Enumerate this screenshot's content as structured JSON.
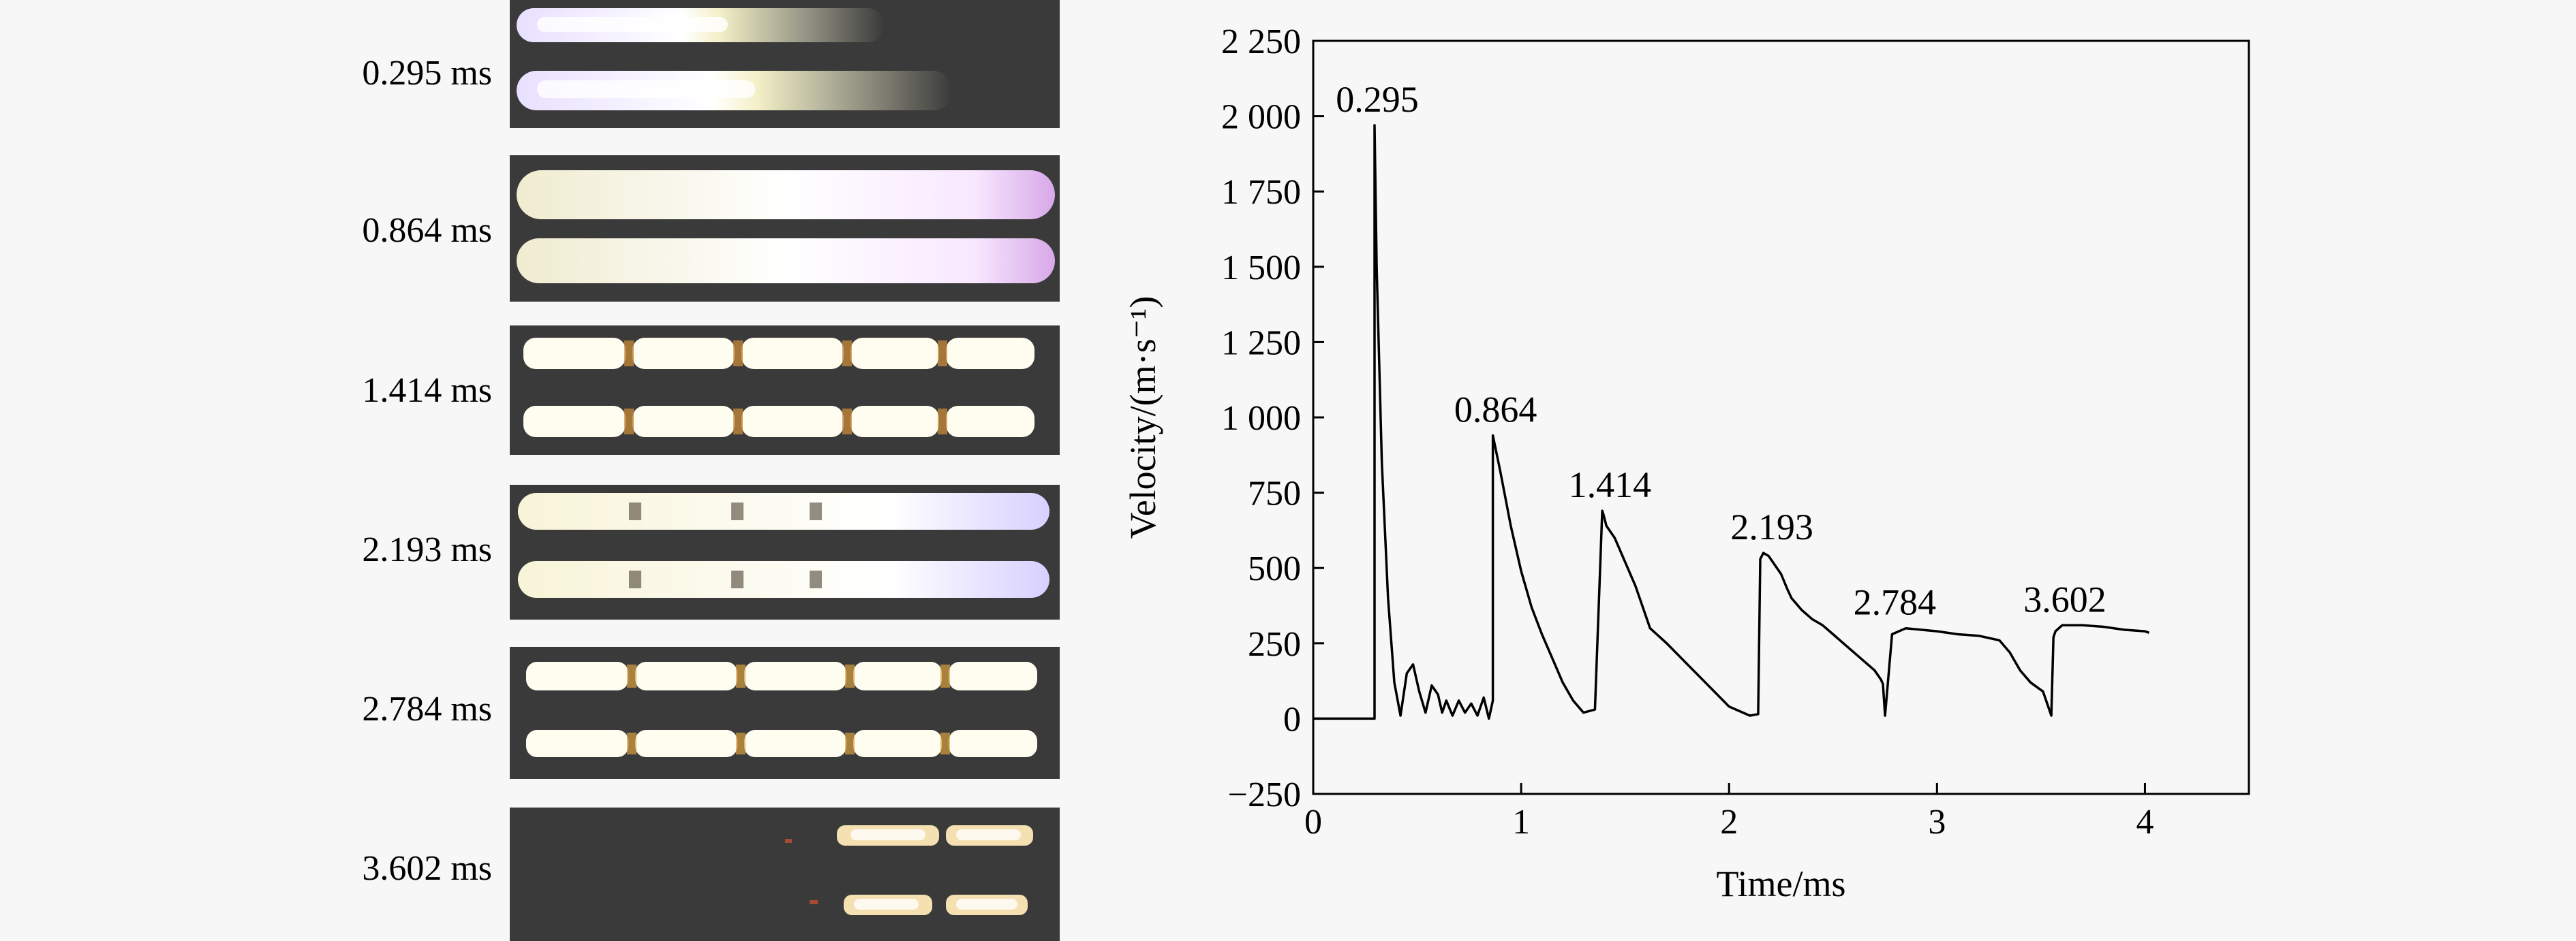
{
  "frames": [
    {
      "label": "0.295 ms"
    },
    {
      "label": "0.864 ms"
    },
    {
      "label": "1.414 ms"
    },
    {
      "label": "2.193 ms"
    },
    {
      "label": "2.784 ms"
    },
    {
      "label": "3.602 ms"
    }
  ],
  "chart_data": {
    "type": "line",
    "xlabel": "Time/ms",
    "ylabel": "Velocity/(m·s⁻¹)",
    "xlim": [
      0,
      4.5
    ],
    "ylim": [
      -250,
      2250
    ],
    "x_ticks": [
      0,
      1,
      2,
      3,
      4
    ],
    "x_tick_labels": [
      "0",
      "1",
      "2",
      "3",
      "4"
    ],
    "y_ticks": [
      -250,
      0,
      250,
      500,
      750,
      1000,
      1250,
      1500,
      1750,
      2000,
      2250
    ],
    "y_tick_labels": [
      "−250",
      "0",
      "250",
      "500",
      "750",
      "1 000",
      "1 250",
      "1 500",
      "1 750",
      "2 000",
      "2 250"
    ],
    "grid": false,
    "series": [
      {
        "x": [
          0,
          0.295,
          0.295,
          0.305,
          0.33,
          0.36,
          0.39,
          0.42,
          0.45,
          0.48,
          0.51,
          0.54,
          0.57,
          0.6,
          0.62,
          0.64,
          0.67,
          0.7,
          0.73,
          0.76,
          0.79,
          0.82,
          0.845,
          0.864,
          0.864,
          0.9,
          0.95,
          1.0,
          1.05,
          1.1,
          1.15,
          1.2,
          1.25,
          1.3,
          1.355,
          1.39,
          1.395,
          1.41,
          1.45,
          1.5,
          1.55,
          1.58,
          1.6,
          1.62,
          1.7,
          1.8,
          1.9,
          2.0,
          2.1,
          2.14,
          2.15,
          2.165,
          2.19,
          2.25,
          2.28,
          2.3,
          2.35,
          2.4,
          2.45,
          2.5,
          2.55,
          2.6,
          2.65,
          2.7,
          2.73,
          2.74,
          2.75,
          2.784,
          2.85,
          3.0,
          3.1,
          3.2,
          3.3,
          3.35,
          3.4,
          3.45,
          3.51,
          3.55,
          3.56,
          3.57,
          3.602,
          3.7,
          3.8,
          3.9,
          4.0,
          4.02
        ],
        "y": [
          0,
          0,
          1970,
          1500,
          850,
          400,
          120,
          10,
          150,
          180,
          90,
          20,
          110,
          80,
          20,
          60,
          10,
          60,
          20,
          50,
          10,
          70,
          0,
          60,
          940,
          820,
          640,
          490,
          370,
          280,
          200,
          120,
          60,
          20,
          30,
          690,
          680,
          640,
          600,
          520,
          440,
          380,
          340,
          300,
          250,
          180,
          110,
          40,
          10,
          15,
          530,
          550,
          540,
          480,
          430,
          400,
          360,
          330,
          310,
          280,
          250,
          220,
          190,
          160,
          130,
          115,
          10,
          280,
          300,
          290,
          280,
          275,
          260,
          220,
          160,
          120,
          90,
          10,
          270,
          290,
          310,
          310,
          305,
          295,
          290,
          285
        ]
      }
    ],
    "annotations": [
      {
        "text": "0.295",
        "x": 0.295,
        "y": 1970
      },
      {
        "text": "0.864",
        "x": 0.864,
        "y": 940
      },
      {
        "text": "1.414",
        "x": 1.414,
        "y": 690
      },
      {
        "text": "2.193",
        "x": 2.193,
        "y": 550
      },
      {
        "text": "2.784",
        "x": 2.784,
        "y": 300
      },
      {
        "text": "3.602",
        "x": 3.602,
        "y": 310
      }
    ]
  }
}
